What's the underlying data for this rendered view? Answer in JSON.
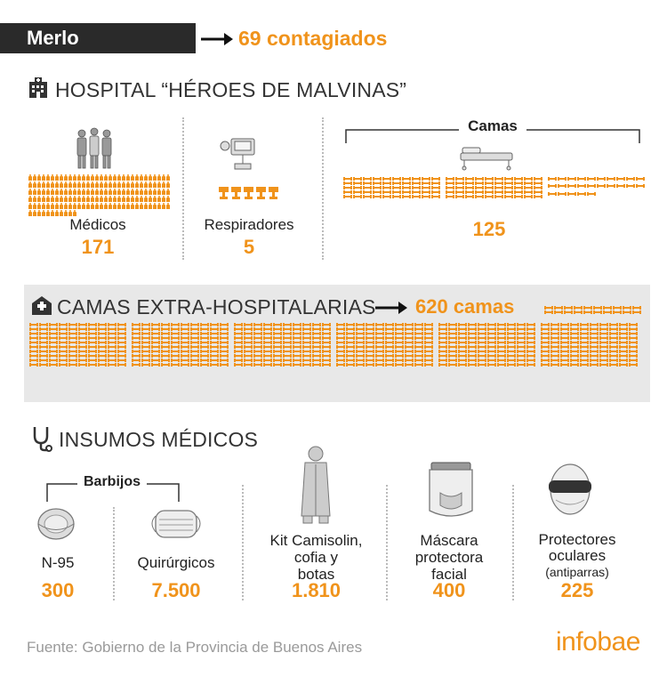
{
  "header": {
    "location": "Merlo",
    "cases": "69 contagiados"
  },
  "hospital": {
    "title": "HOSPITAL “HÉROES DE MALVINAS”",
    "medicos_label": "Médicos",
    "medicos_value": "171",
    "respiradores_label": "Respiradores",
    "respiradores_value": "5",
    "camas_label": "Camas",
    "camas_value": "125"
  },
  "extra": {
    "title": "CAMAS EXTRA-HOSPITALARIAS",
    "value": "620 camas"
  },
  "insumos": {
    "title": "INSUMOS MÉDICOS",
    "barbijos_label": "Barbijos",
    "n95_label": "N-95",
    "n95_value": "300",
    "quirurgicos_label": "Quirúrgicos",
    "quirurgicos_value": "7.500",
    "kit_label_1": "Kit Camisolin,",
    "kit_label_2": "cofia y",
    "kit_label_3": "botas",
    "kit_value": "1.810",
    "mascara_label_1": "Máscara",
    "mascara_label_2": "protectora",
    "mascara_label_3": "facial",
    "mascara_value": "400",
    "prot_label_1": "Protectores",
    "prot_label_2": "oculares",
    "prot_label_3": "(antiparras)",
    "prot_value": "225"
  },
  "footer": {
    "source": "Fuente: Gobierno de la Provincia de Buenos Aires",
    "brand": "infobae"
  },
  "colors": {
    "accent": "#f0931b",
    "dark": "#2a2a2a",
    "panel": "#e8e8e8"
  }
}
